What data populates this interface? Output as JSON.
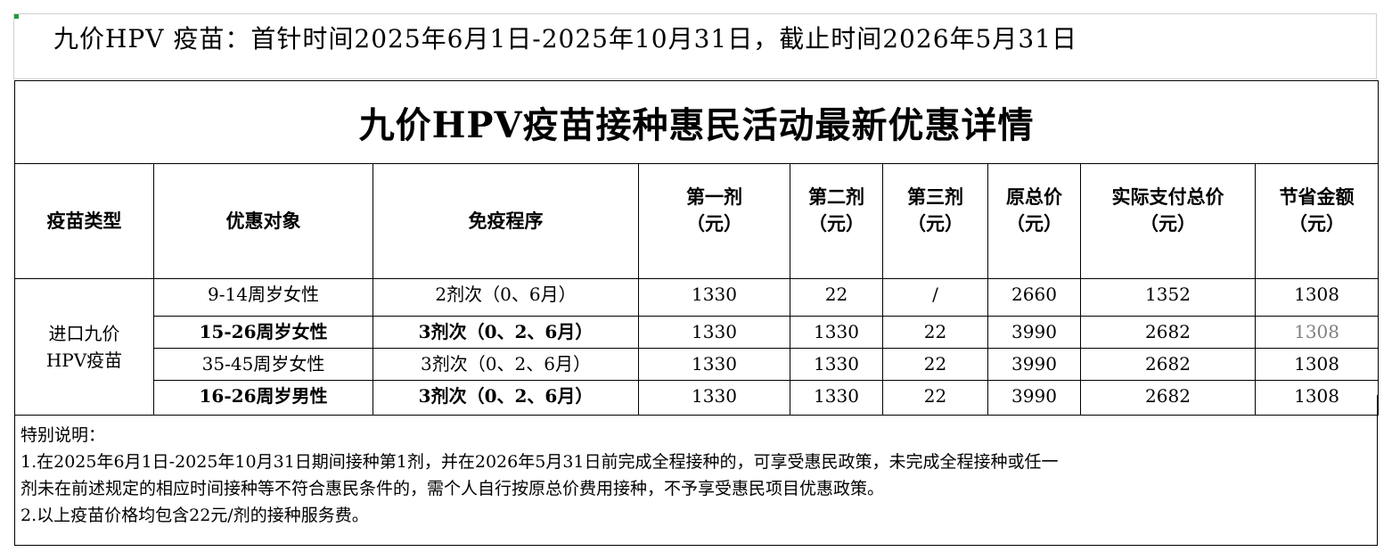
{
  "banner": "九价HPV 疫苗：首针时间2025年6月1日-2025年10月31日，截止时间2026年5月31日",
  "table": {
    "title": "九价HPV疫苗接种惠民活动最新优惠详情",
    "headers": [
      "疫苗类型",
      "优惠对象",
      "免疫程序",
      "第一剂\n（元）",
      "第二剂\n（元）",
      "第三剂\n（元）",
      "原总价\n（元）",
      "实际支付总价\n（元）",
      "节省金额\n（元）"
    ],
    "vaccine_type": "进口九价\nHPV疫苗",
    "rows": [
      [
        "9-14周岁女性",
        "2剂次（0、6月）",
        1330,
        22,
        "/",
        2660,
        1352,
        1308
      ],
      [
        "15-26周岁女性",
        "3剂次（0、2、6月）",
        1330,
        1330,
        22,
        3990,
        2682,
        1308
      ],
      [
        "35-45周岁女性",
        "3剂次（0、2、6月）",
        1330,
        1330,
        22,
        3990,
        2682,
        1308
      ],
      [
        "16-26周岁男性",
        "3剂次（0、2、6月）",
        1330,
        1330,
        22,
        3990,
        2682,
        1308
      ]
    ]
  },
  "notes": {
    "heading": "特别说明：",
    "lines": [
      "1.在2025年6月1日-2025年10月31日期间接种第1剂，并在2026年5月31日前完成全程接种的，可享受惠民政策，未完成全程接种或任一",
      "剂未在前述规定的相应时间接种等不符合惠民条件的，需个人自行按原总价费用接种，不予享受惠民项目优惠政策。",
      "2.以上疫苗价格均包含22元/剂的接种服务费。"
    ]
  }
}
